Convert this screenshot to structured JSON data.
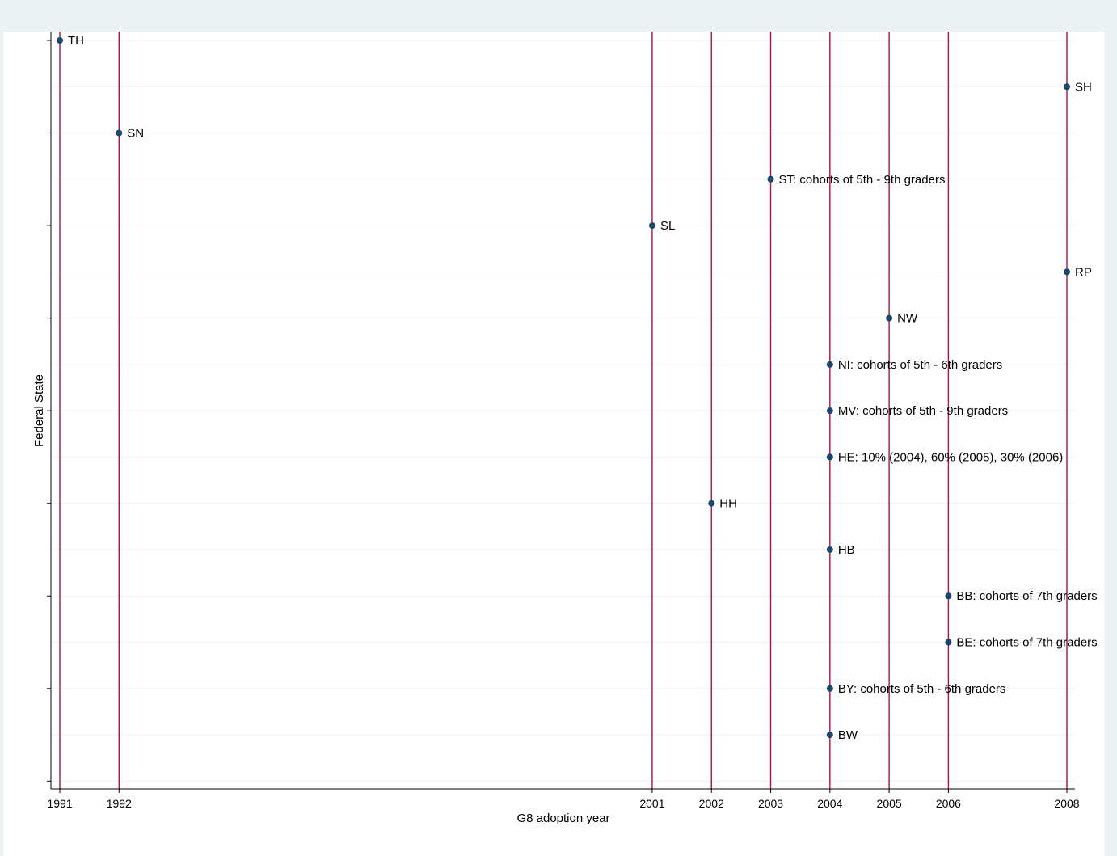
{
  "chart_data": {
    "type": "scatter",
    "xlabel": "G8 adoption year",
    "ylabel": "Federal State",
    "xlim": [
      1991,
      2008
    ],
    "x_ticks": [
      1991,
      1992,
      2001,
      2002,
      2003,
      2004,
      2005,
      2006,
      2008
    ],
    "y_tick_count": 9,
    "grid": true,
    "reference_lines_x": [
      1991,
      1992,
      2001,
      2002,
      2003,
      2004,
      2005,
      2006,
      2008
    ],
    "points": [
      {
        "label": "TH",
        "x": 1991
      },
      {
        "label": "SH",
        "x": 2008
      },
      {
        "label": "SN",
        "x": 1992
      },
      {
        "label": "ST: cohorts of 5th - 9th graders",
        "x": 2003
      },
      {
        "label": "SL",
        "x": 2001
      },
      {
        "label": "RP",
        "x": 2008
      },
      {
        "label": "NW",
        "x": 2005
      },
      {
        "label": "NI: cohorts of 5th - 6th graders",
        "x": 2004
      },
      {
        "label": "MV: cohorts of 5th - 9th graders",
        "x": 2004
      },
      {
        "label": "HE: 10% (2004), 60% (2005), 30% (2006)",
        "x": 2004
      },
      {
        "label": "HH",
        "x": 2002
      },
      {
        "label": "HB",
        "x": 2004
      },
      {
        "label": "BB: cohorts of 7th graders",
        "x": 2006
      },
      {
        "label": "BE: cohorts of 7th graders",
        "x": 2006
      },
      {
        "label": "BY: cohorts of 5th - 6th graders",
        "x": 2004
      },
      {
        "label": "BW",
        "x": 2004
      }
    ]
  },
  "colors": {
    "outer_background": "#eaf2f3",
    "plot_background": "#ffffff",
    "grid": "#eaf2f3",
    "axis": "#000000",
    "reference_line": "#a5143a",
    "marker": "#1a476f",
    "text": "#000000"
  }
}
